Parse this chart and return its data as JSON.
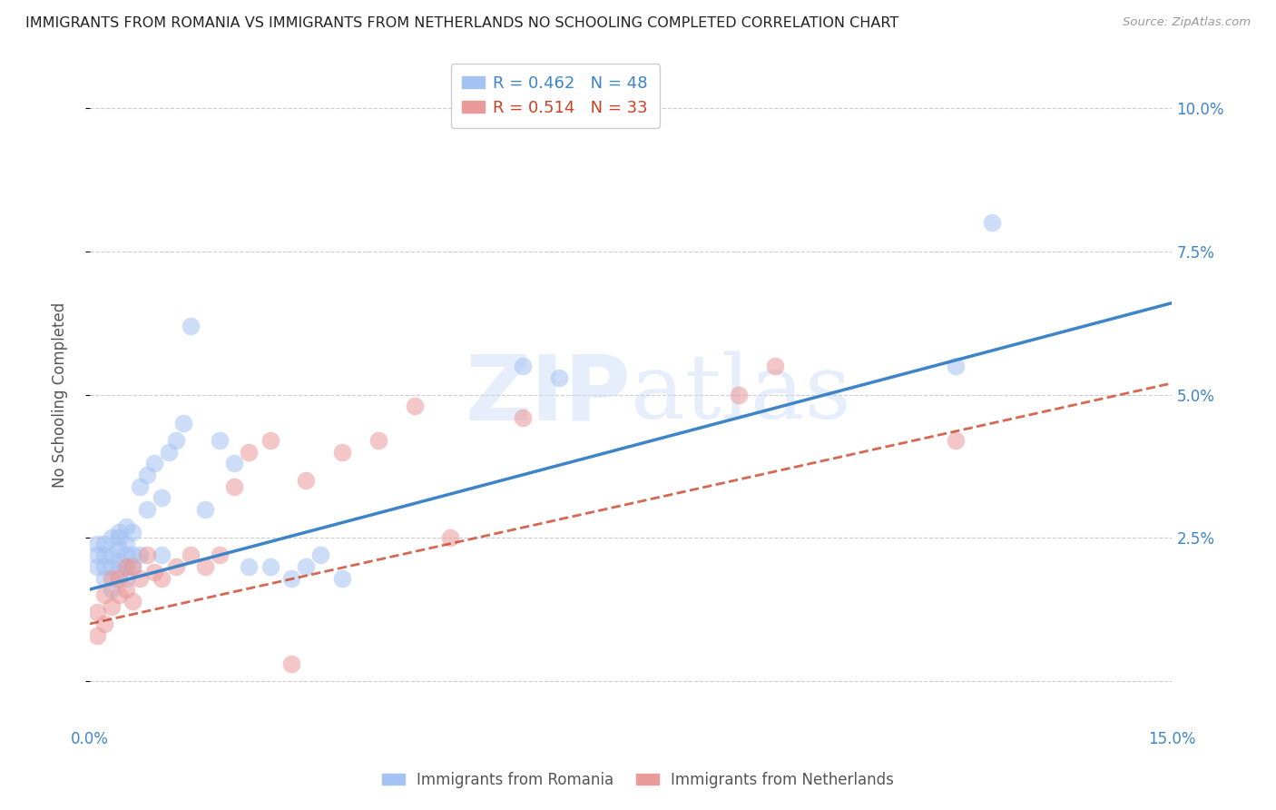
{
  "title": "IMMIGRANTS FROM ROMANIA VS IMMIGRANTS FROM NETHERLANDS NO SCHOOLING COMPLETED CORRELATION CHART",
  "source": "Source: ZipAtlas.com",
  "ylabel": "No Schooling Completed",
  "xlim": [
    0.0,
    0.15
  ],
  "ylim": [
    -0.008,
    0.108
  ],
  "yticks": [
    0.0,
    0.025,
    0.05,
    0.075,
    0.1
  ],
  "ytick_labels_right": [
    "",
    "2.5%",
    "5.0%",
    "7.5%",
    "10.0%"
  ],
  "xticks": [
    0.0,
    0.025,
    0.05,
    0.075,
    0.1,
    0.125,
    0.15
  ],
  "xtick_labels": [
    "0.0%",
    "",
    "",
    "",
    "",
    "",
    "15.0%"
  ],
  "legend_romania": "R = 0.462   N = 48",
  "legend_netherlands": "R = 0.514   N = 33",
  "legend_label_romania": "Immigrants from Romania",
  "legend_label_netherlands": "Immigrants from Netherlands",
  "color_romania": "#a4c2f4",
  "color_netherlands": "#ea9999",
  "color_romania_line": "#3d85c8",
  "color_netherlands_line": "#cc4125",
  "watermark_zip": "ZIP",
  "watermark_atlas": "atlas",
  "romania_x": [
    0.001,
    0.001,
    0.001,
    0.002,
    0.002,
    0.002,
    0.002,
    0.003,
    0.003,
    0.003,
    0.003,
    0.004,
    0.004,
    0.004,
    0.004,
    0.004,
    0.005,
    0.005,
    0.005,
    0.005,
    0.005,
    0.006,
    0.006,
    0.006,
    0.007,
    0.007,
    0.008,
    0.008,
    0.009,
    0.01,
    0.01,
    0.011,
    0.012,
    0.013,
    0.014,
    0.016,
    0.018,
    0.02,
    0.022,
    0.025,
    0.028,
    0.03,
    0.032,
    0.035,
    0.06,
    0.065,
    0.12,
    0.125
  ],
  "romania_y": [
    0.02,
    0.022,
    0.024,
    0.018,
    0.02,
    0.022,
    0.024,
    0.016,
    0.02,
    0.022,
    0.025,
    0.019,
    0.021,
    0.023,
    0.025,
    0.026,
    0.018,
    0.02,
    0.022,
    0.024,
    0.027,
    0.02,
    0.022,
    0.026,
    0.022,
    0.034,
    0.03,
    0.036,
    0.038,
    0.022,
    0.032,
    0.04,
    0.042,
    0.045,
    0.062,
    0.03,
    0.042,
    0.038,
    0.02,
    0.02,
    0.018,
    0.02,
    0.022,
    0.018,
    0.055,
    0.053,
    0.055,
    0.08
  ],
  "netherlands_x": [
    0.001,
    0.001,
    0.002,
    0.002,
    0.003,
    0.003,
    0.004,
    0.004,
    0.005,
    0.005,
    0.006,
    0.006,
    0.007,
    0.008,
    0.009,
    0.01,
    0.012,
    0.014,
    0.016,
    0.018,
    0.02,
    0.022,
    0.025,
    0.028,
    0.03,
    0.035,
    0.04,
    0.045,
    0.05,
    0.06,
    0.09,
    0.095,
    0.12
  ],
  "netherlands_y": [
    0.008,
    0.012,
    0.01,
    0.015,
    0.013,
    0.018,
    0.015,
    0.018,
    0.016,
    0.02,
    0.014,
    0.02,
    0.018,
    0.022,
    0.019,
    0.018,
    0.02,
    0.022,
    0.02,
    0.022,
    0.034,
    0.04,
    0.042,
    0.003,
    0.035,
    0.04,
    0.042,
    0.048,
    0.025,
    0.046,
    0.05,
    0.055,
    0.042
  ],
  "romania_line_x": [
    0.0,
    0.15
  ],
  "romania_line_y": [
    0.016,
    0.066
  ],
  "netherlands_line_x": [
    0.0,
    0.15
  ],
  "netherlands_line_y": [
    0.01,
    0.052
  ]
}
